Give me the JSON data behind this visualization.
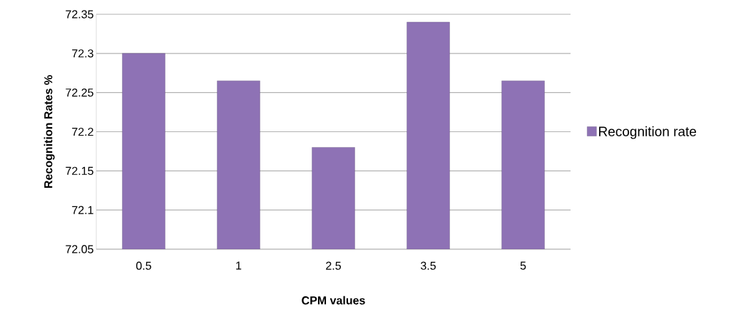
{
  "chart_data": {
    "type": "bar",
    "xlabel": "CPM values",
    "ylabel": "Recognition Rates %",
    "categories": [
      "0.5",
      "1",
      "2.5",
      "3.5",
      "5"
    ],
    "series": [
      {
        "name": "Recognition rate",
        "color": "#8e72b5",
        "values": [
          72.3,
          72.265,
          72.18,
          72.34,
          72.265
        ]
      }
    ],
    "ylim": [
      72.05,
      72.35
    ],
    "yticks": [
      72.05,
      72.1,
      72.15,
      72.2,
      72.25,
      72.3,
      72.35
    ],
    "grid": "y",
    "legend": "right"
  }
}
